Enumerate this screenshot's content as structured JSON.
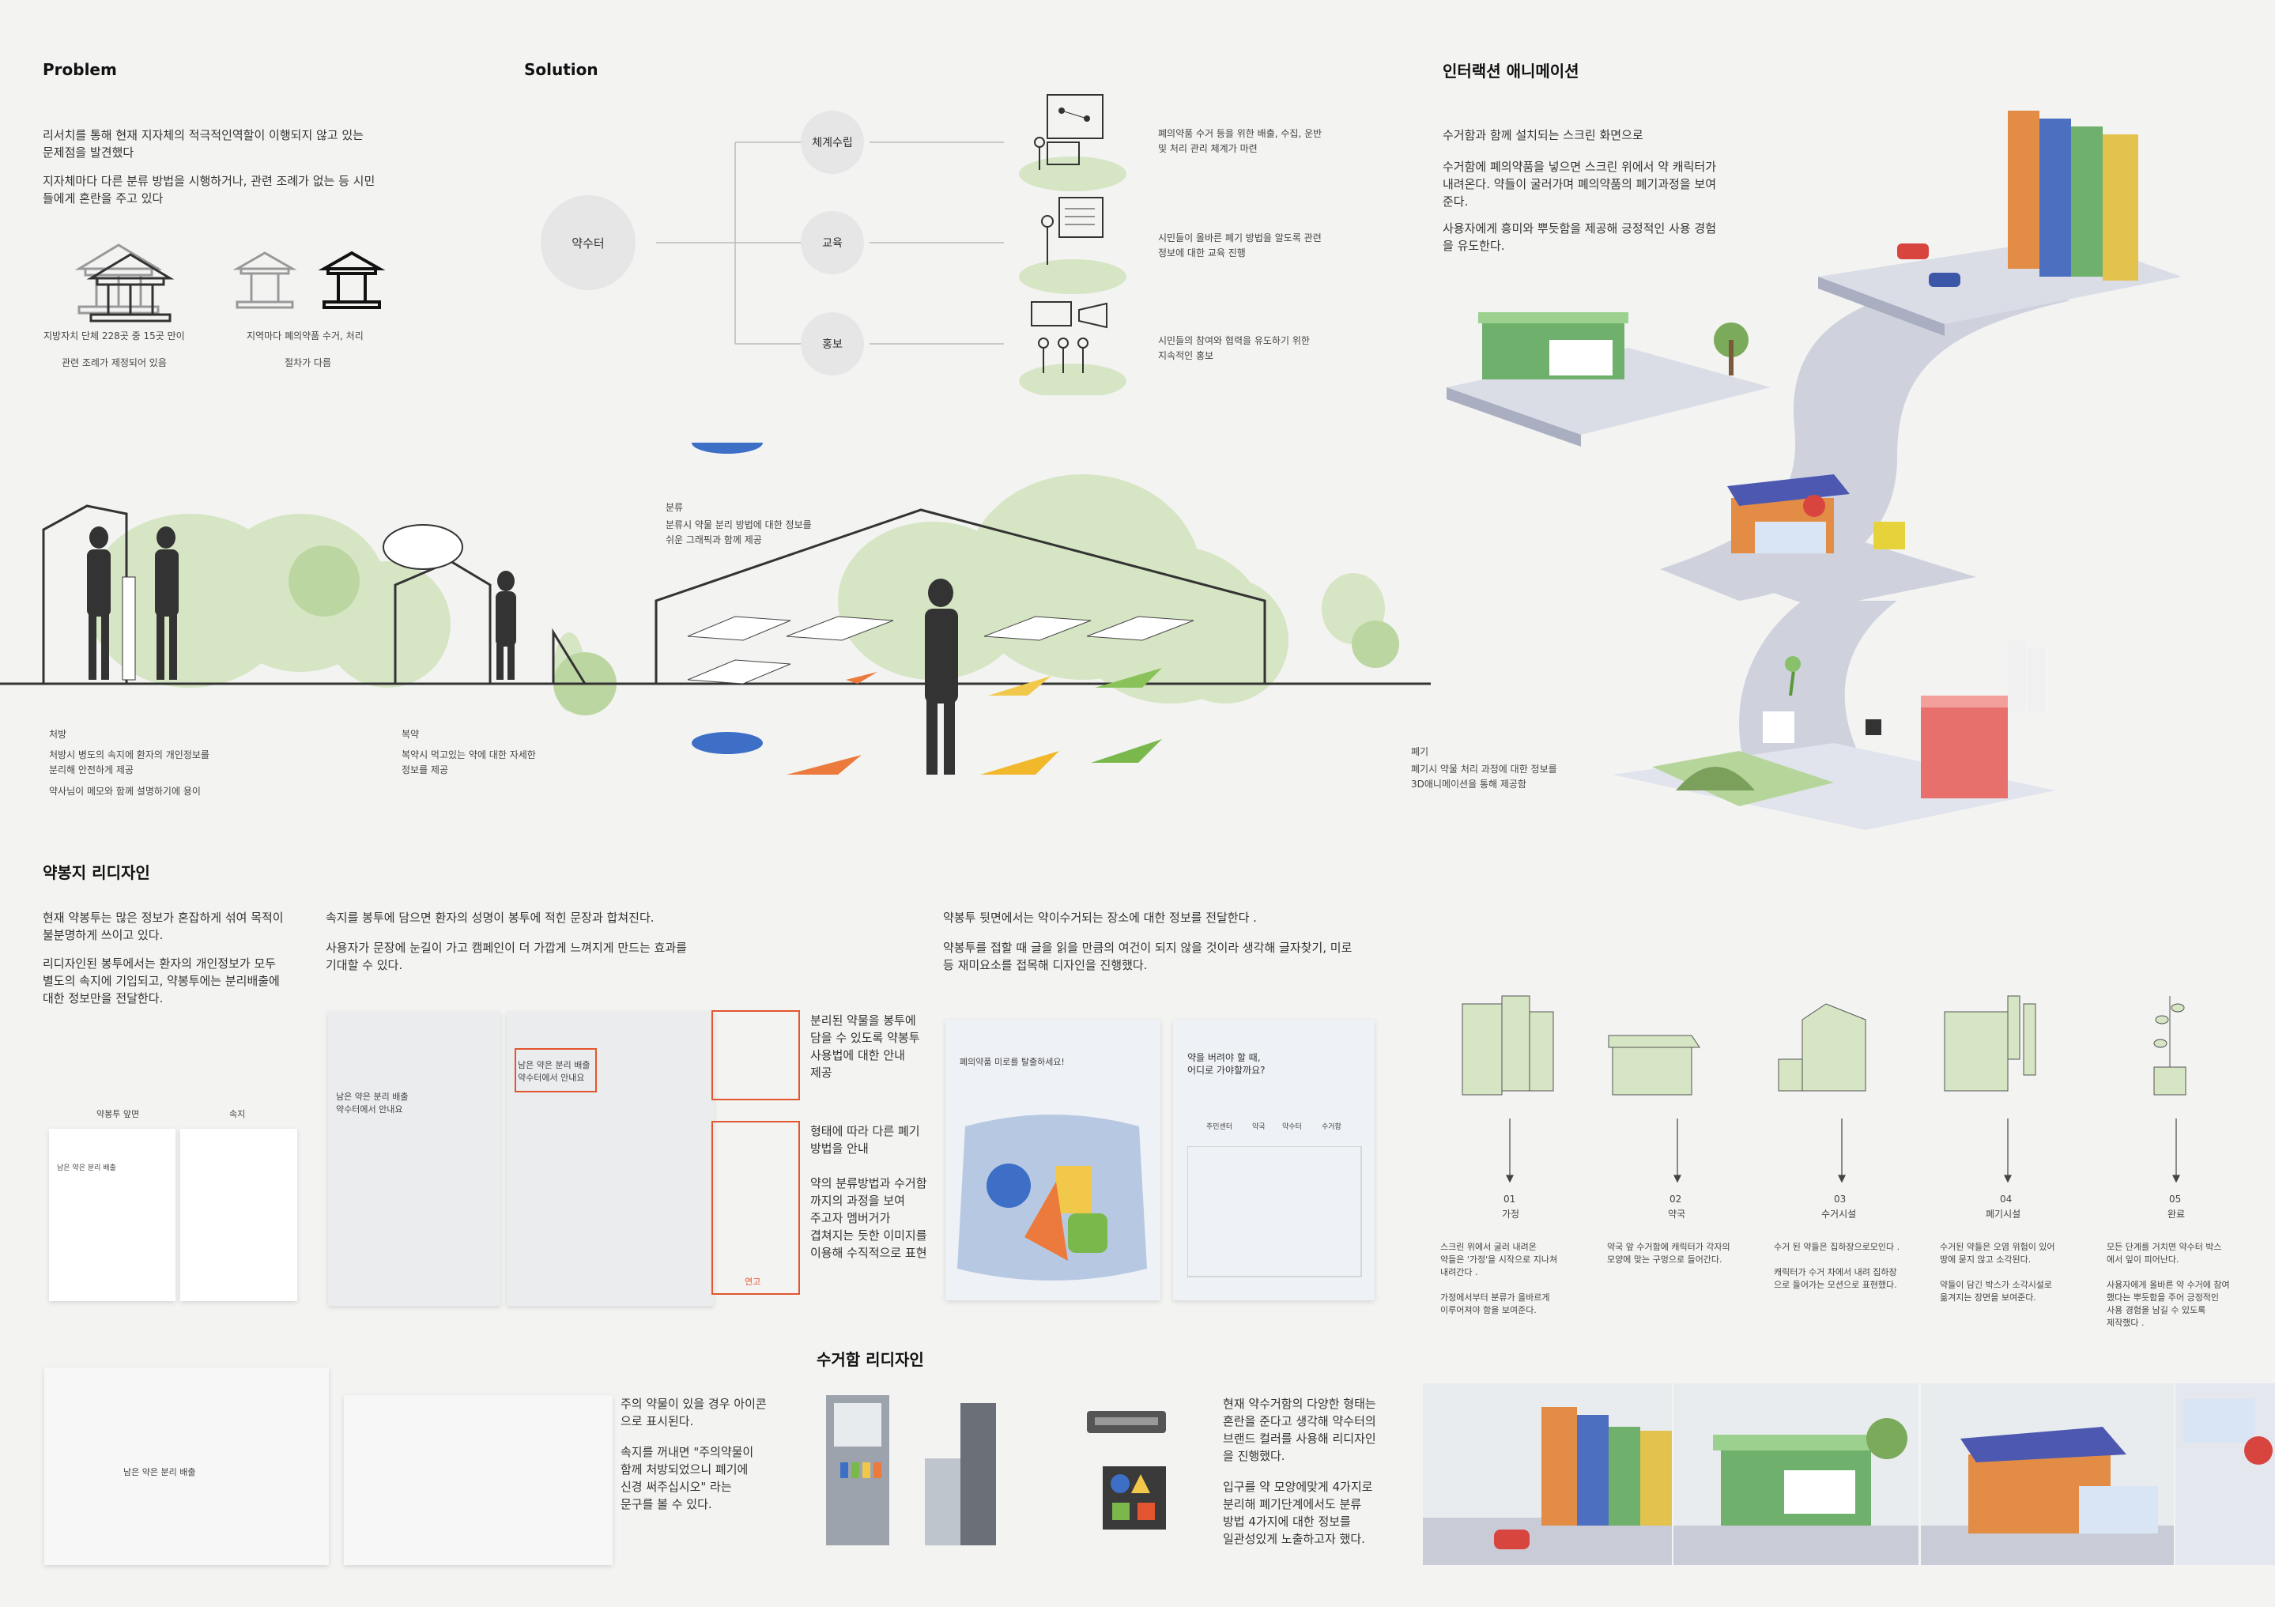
{
  "problem": {
    "heading": "Problem",
    "p1": "리서치를 통해 현재 지자체의 적극적인역할이 이행되지 않고 있는\n문제점을 발견했다",
    "p2": "지자체마다 다른 분류 방법을 시행하거나, 관련 조례가 없는 등 시민\n들에게 혼란을 주고 있다",
    "cap1a": "지방자치 단체 228곳 중 15곳 만이",
    "cap1b": "관련 조례가 제정되어 있음",
    "cap2a": "지역마다 폐의약품 수거, 처리",
    "cap2b": "절차가 다름"
  },
  "solution": {
    "heading": "Solution",
    "center": "약수터",
    "branches": [
      {
        "label": "체계수립",
        "desc": "폐의약품 수거 등을 위한 배출, 수집, 운반\n및 처리 관리 체계가 마련"
      },
      {
        "label": "교육",
        "desc": "시민들이 올바른 폐기 방법을 알도록 관련\n정보에 대한 교육 진행"
      },
      {
        "label": "홍보",
        "desc": "시민들의 참여와 협력을 유도하기 위한\n지속적인 홍보"
      }
    ]
  },
  "interaction": {
    "heading": "인터랙션 애니메이션",
    "p1": "수거함과 함께 설치되는 스크린 화면으로",
    "p2": "수거함에 폐의약품을 넣으면 스크린 위에서 약 캐릭터가\n내려온다. 약들이 굴러가며 폐의약품의 폐기과정을 보여\n준다.",
    "p3": "사용자에게 흥미와 뿌듯함을 제공해 긍정적인 사용 경험\n을 유도한다."
  },
  "scene": {
    "s1_title": "처방",
    "s1_desc1": "처방시 병도의 속지에 환자의 개인정보를\n분리해 안전하게 제공",
    "s1_desc2": "약사님이 메모와 함께 설명하기에 용이",
    "s2_title": "복약",
    "s2_desc": "복약시 먹고있는 약에 대한 자세한\n정보를 제공",
    "s3_title": "분류",
    "s3_desc": "분류시 약물 분리 방법에 대한 정보를\n쉬운 그래픽과 함께 제공",
    "s4_title": "폐기",
    "s4_desc": "폐기시 약물 처리 과정에 대한 정보를\n3D애니메이션을 통해 제공함"
  },
  "bag": {
    "heading": "약봉지 리디자인",
    "p1": "현재 약봉투는 많은 정보가 혼잡하게 섞여 목적이\n불분명하게 쓰이고 있다.",
    "p2": "리디자인된 봉투에서는 환자의 개인정보가 모두\n별도의 속지에 기입되고, 약봉투에는 분리배출에\n대한 정보만을 전달한다.",
    "p3": "속지를 봉투에 담으면 환자의 성명이 봉투에 적힌 문장과 합쳐진다.",
    "p4": "사용자가 문장에 눈길이 가고 캠페인이 더 가깝게 느껴지게 만드는 효과를\n기대할 수 있다.",
    "p5": "약봉투 뒷면에서는 약이수거되는  장소에 대한 정보를 전달한다 .",
    "p6": "약봉투를 접할 때 글을 읽을 만큼의 여건이 되지 않을 것이라 생각해 글자찾기, 미로\n등 재미요소를 접목해 디자인을 진행했다.",
    "card_front": "약봉투 앞면",
    "card_inner": "속지",
    "side1": "분리된 약물을 봉투에\n담을 수 있도록 약봉투\n사용법에 대한 안내\n제공",
    "side2": "형태에 따라 다른 폐기\n방법을 안내",
    "side3": "약의 분류방법과 수거함\n까지의 과정을 보여\n주고자 멤버거가\n겹쳐지는 듯한 이미지를\n이용해  수직적으로 표현",
    "sentence_a": "남은 약은 분리 배출",
    "sentence_b": "약수터에서 안내요",
    "maze_title": "폐의약품 미로를 탈출하세요!",
    "word_title": "약을 버려야 할 때,\n어디로 가야할까요?",
    "word_cols": [
      "주민센터",
      "약국",
      "약수터",
      "수거함"
    ],
    "label_ointment": "연고",
    "bottom_p1": "주의 약물이 있을 경우 아이콘\n으로 표시된다.",
    "bottom_p2": "속지를 꺼내면 \"주의약물이\n함께 처방되었으니 폐기에\n신경 써주십시오\" 라는\n문구를 볼 수 있다."
  },
  "bin": {
    "heading": "수거함 리디자인",
    "p1": "현재 약수거함의 다양한 형태는\n혼란을 준다고 생각해 약수터의\n브랜드 컬러를 사용해 리디자인\n을 진행했다.",
    "p2": "입구를 약 모양에맞게  4가지로\n분리해 폐기단계에서도 분류\n방법 4가지에 대한 정보를\n일관성있게 노출하고자 했다."
  },
  "steps": [
    {
      "num": "01",
      "name": "가정",
      "desc": "스크린 위에서 굴러 내려온\n약들은 '가정'을 시작으로 지나쳐\n내려간다 .\n\n가정에서부터 분류가 올바르게\n이루어져야 함을 보여준다."
    },
    {
      "num": "02",
      "name": "약국",
      "desc": "약국 앞 수거함에 캐릭터가 각자의\n모양에 맞는 구멍으로 들어간다."
    },
    {
      "num": "03",
      "name": "수거시설",
      "desc": "수거 된 약들은 집하장으로모인다 .\n\n캐릭터가 수거 차에서 내려 집하장\n으로 들어가는 모션으로 표현했다."
    },
    {
      "num": "04",
      "name": "폐기시설",
      "desc": "수거된 약들은 오염 위험이 있어\n땅에 묻지 않고 소각된다.\n\n약들이 담긴 박스가 소각시설로\n옮겨지는 장면을 보여준다."
    },
    {
      "num": "05",
      "name": "완료",
      "desc": "모든 단계를 거치면 약수터 박스\n에서 잎이 피어난다.\n\n사용자에게 올바른 약 수거에 참여\n했다는 뿌듯함을 주어 긍정적인\n사용 경험을 남길 수 있도록\n제작했다 ."
    }
  ],
  "colors": {
    "green": "#d6e5c4",
    "accent": "#e2552e",
    "bg": "#f3f3f2"
  }
}
